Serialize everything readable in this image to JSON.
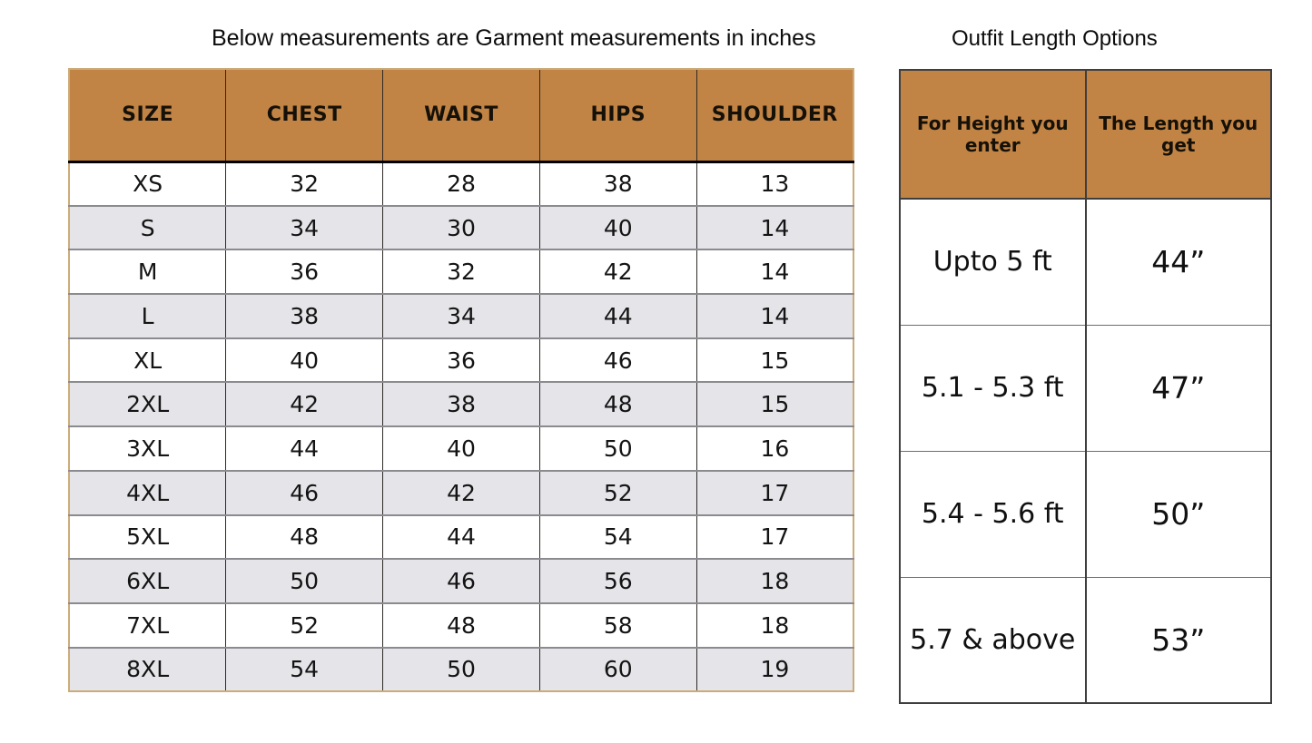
{
  "chart_data": [
    {
      "type": "table",
      "title": "Below measurements are Garment measurements in inches",
      "columns": [
        "SIZE",
        "CHEST",
        "WAIST",
        "HIPS",
        "SHOULDER"
      ],
      "rows": [
        [
          "XS",
          "32",
          "28",
          "38",
          "13"
        ],
        [
          "S",
          "34",
          "30",
          "40",
          "14"
        ],
        [
          "M",
          "36",
          "32",
          "42",
          "14"
        ],
        [
          "L",
          "38",
          "34",
          "44",
          "14"
        ],
        [
          "XL",
          "40",
          "36",
          "46",
          "15"
        ],
        [
          "2XL",
          "42",
          "38",
          "48",
          "15"
        ],
        [
          "3XL",
          "44",
          "40",
          "50",
          "16"
        ],
        [
          "4XL",
          "46",
          "42",
          "52",
          "17"
        ],
        [
          "5XL",
          "48",
          "44",
          "54",
          "17"
        ],
        [
          "6XL",
          "50",
          "46",
          "56",
          "18"
        ],
        [
          "7XL",
          "52",
          "48",
          "58",
          "18"
        ],
        [
          "8XL",
          "54",
          "50",
          "60",
          "19"
        ]
      ],
      "layout_hints": {
        "striped_rows": true,
        "units": "inches"
      }
    },
    {
      "type": "table",
      "title": "Outfit Length Options",
      "columns": [
        "For Height you enter",
        "The Length you get"
      ],
      "rows": [
        [
          "Upto 5 ft",
          "44”"
        ],
        [
          "5.1 - 5.3 ft",
          "47”"
        ],
        [
          "5.4 - 5.6 ft",
          "50”"
        ],
        [
          "5.7 & above",
          "53”"
        ]
      ],
      "layout_hints": {
        "striped_rows": false
      }
    }
  ],
  "colors": {
    "header_fill": "#c28445",
    "stripe": "#e4e4e9",
    "left_outer_border": "#cbab7a",
    "row_line": "#8b8b8f",
    "column_line": "#2e2a26",
    "right_border": "#3e3e3e"
  }
}
